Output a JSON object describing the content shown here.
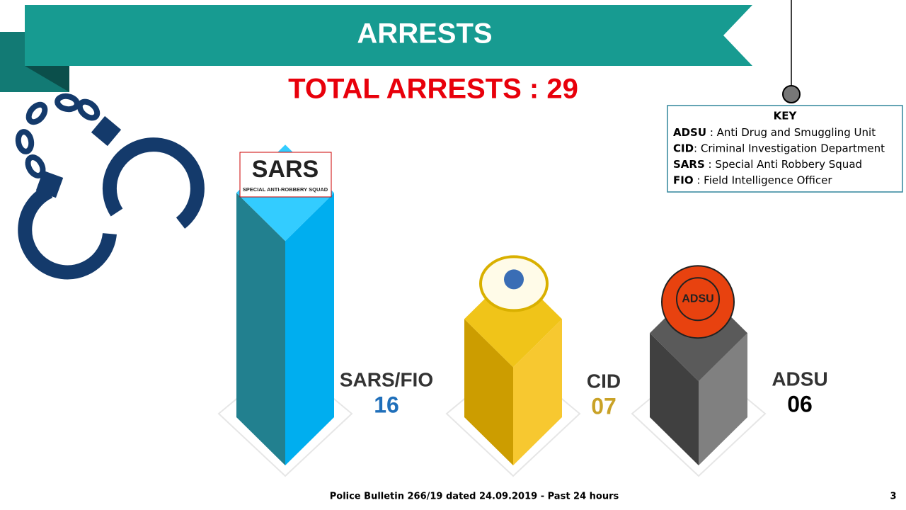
{
  "chart_data": {
    "type": "bar",
    "title": "ARRESTS",
    "subtitle": "TOTAL ARRESTS : 29",
    "categories": [
      "SARS/FIO",
      "CID",
      "ADSU"
    ],
    "values": [
      16,
      7,
      6
    ],
    "value_labels": [
      "16",
      "07",
      "06"
    ],
    "label_colors": [
      "#1f6fba",
      "#c9a227",
      "#000000"
    ],
    "faces": [
      {
        "left": "#22808f",
        "right": "#00aeef",
        "top": "#33ccff"
      },
      {
        "left": "#cc9d00",
        "right": "#f7c830",
        "top": "#f0c419"
      },
      {
        "left": "#404040",
        "right": "#808080",
        "top": "#5a5a5a"
      }
    ]
  },
  "logos": {
    "sars": "SARS",
    "sars_subtitle": "SPECIAL ANTI-ROBBERY SQUAD",
    "adsu": "ADSU"
  },
  "key": {
    "title": "KEY",
    "items": [
      {
        "abbr": "ADSU",
        "text": " : Anti Drug and Smuggling Unit"
      },
      {
        "abbr": "CID",
        "text": ": Criminal Investigation Department"
      },
      {
        "abbr": "SARS",
        "text": " : Special Anti Robbery Squad"
      },
      {
        "abbr": "FIO",
        "text": " : Field Intelligence Officer"
      }
    ]
  },
  "footer": "Police Bulletin 266/19 dated 24.09.2019 - Past 24 hours",
  "page_number": "3"
}
